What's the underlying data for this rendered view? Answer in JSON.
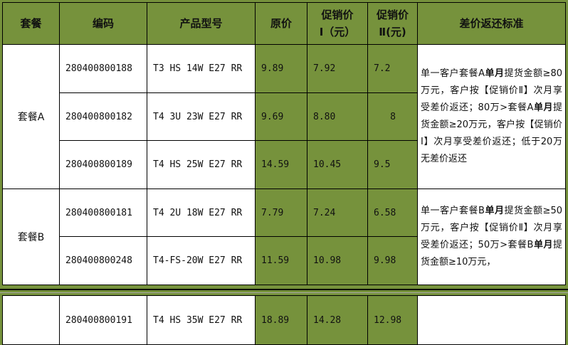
{
  "headers": [
    "套餐",
    "编码",
    "产品型号",
    "原价",
    "促销价\nⅠ（元）",
    "促销价\nⅡ(元)",
    "差价返还标准"
  ],
  "groups": [
    {
      "name": "套餐A",
      "rows": [
        {
          "code": "280400800188",
          "model": "T3 HS 14W E27 RR",
          "orig": "9.89",
          "p1": "7.92",
          "p2": "7.2"
        },
        {
          "code": "280400800182",
          "model": "T4 3U 23W E27 RR",
          "orig": "9.69",
          "p1": "8.80",
          "p2": "8"
        },
        {
          "code": "280400800189",
          "model": "T4 HS 25W E27 RR",
          "orig": "14.59",
          "p1": "10.45",
          "p2": "9.5"
        }
      ],
      "note": "单一客户套餐A单月提货金额≥80万元，客户按【促销价Ⅱ】次月享受差价返还；80万>套餐A单月提货金额≥20万元，客户按【促销价Ⅰ】次月享受差价返还；低于20万无差价返还"
    },
    {
      "name": "套餐B",
      "rows": [
        {
          "code": "280400800181",
          "model": "T4 2U 18W E27 RR",
          "orig": "7.79",
          "p1": "7.24",
          "p2": "6.58"
        },
        {
          "code": "280400800248",
          "model": "T4-FS-20W E27 RR",
          "orig": "11.59",
          "p1": "10.98",
          "p2": "9.98"
        }
      ],
      "note": "单一客户套餐B单月提货金额≥50万元，客户按【促销价Ⅱ】次月享受差价返还；50万>套餐B单月提货金额≥10万元，"
    }
  ],
  "extra_row": {
    "code": "280400800191",
    "model": "T4 HS 35W E27 RR",
    "orig": "18.89",
    "p1": "14.28",
    "p2": "12.98"
  },
  "colors": {
    "header_green": "#76923c",
    "cell_white": "#ffffff"
  }
}
